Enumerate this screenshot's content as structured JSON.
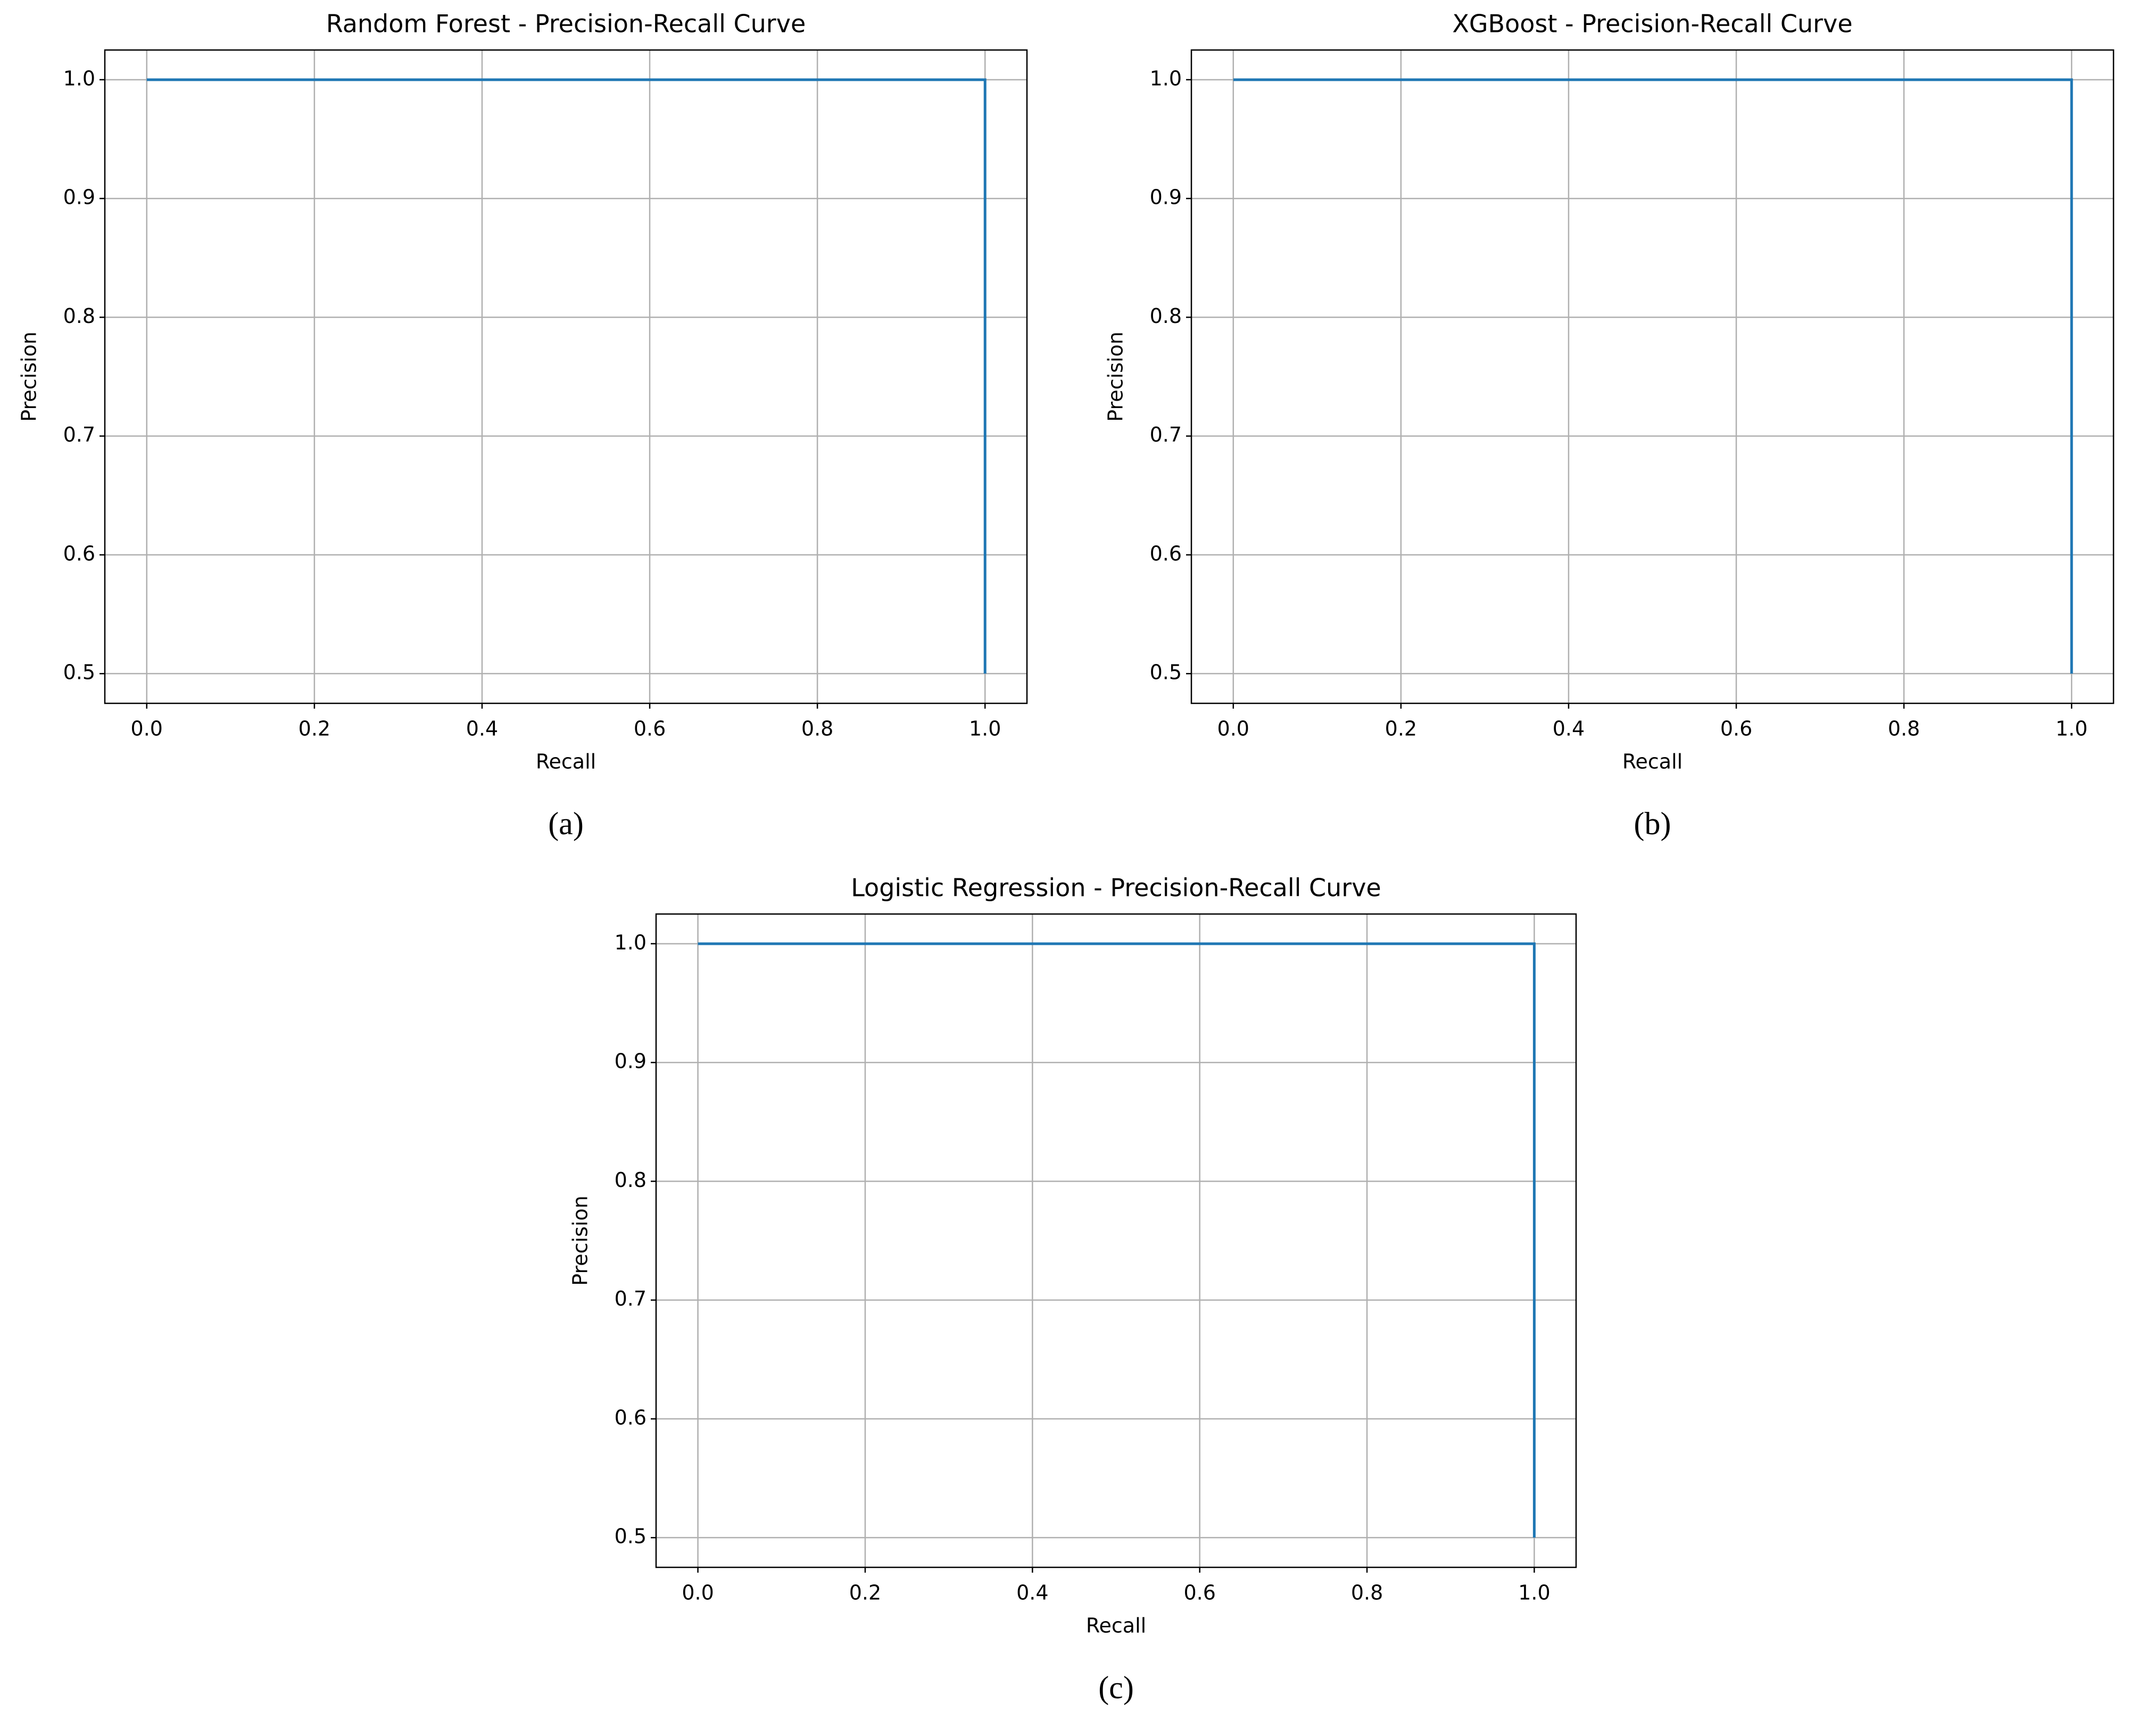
{
  "chart_data": [
    {
      "type": "line",
      "title": "Random Forest - Precision-Recall Curve",
      "xlabel": "Recall",
      "ylabel": "Precision",
      "panel_label": "(a)",
      "x": [
        0,
        1,
        1
      ],
      "series": [
        {
          "color": "#1f77b4",
          "values": [
            1,
            1,
            0.5
          ]
        }
      ],
      "xlim": [
        -0.05,
        1.05
      ],
      "ylim": [
        0.475,
        1.025
      ],
      "xticks": [
        {
          "value": 0,
          "label": "0.0"
        },
        0.2,
        0.4,
        0.6,
        0.8,
        {
          "value": 1,
          "label": "1.0"
        }
      ],
      "yticks": [
        0.5,
        0.6,
        0.7,
        0.8,
        0.9,
        {
          "value": 1,
          "label": "1.0"
        }
      ],
      "grid": true
    },
    {
      "type": "line",
      "title": "XGBoost - Precision-Recall Curve",
      "xlabel": "Recall",
      "ylabel": "Precision",
      "panel_label": "(b)",
      "x": [
        0,
        1,
        1
      ],
      "series": [
        {
          "color": "#1f77b4",
          "values": [
            1,
            1,
            0.5
          ]
        }
      ],
      "xlim": [
        -0.05,
        1.05
      ],
      "ylim": [
        0.475,
        1.025
      ],
      "xticks": [
        {
          "value": 0,
          "label": "0.0"
        },
        0.2,
        0.4,
        0.6,
        0.8,
        {
          "value": 1,
          "label": "1.0"
        }
      ],
      "yticks": [
        0.5,
        0.6,
        0.7,
        0.8,
        0.9,
        {
          "value": 1,
          "label": "1.0"
        }
      ],
      "grid": true
    },
    {
      "type": "line",
      "title": "Logistic Regression - Precision-Recall Curve",
      "xlabel": "Recall",
      "ylabel": "Precision",
      "panel_label": "(c)",
      "x": [
        0,
        1,
        1
      ],
      "series": [
        {
          "color": "#1f77b4",
          "values": [
            1,
            1,
            0.5
          ]
        }
      ],
      "xlim": [
        -0.05,
        1.05
      ],
      "ylim": [
        0.475,
        1.025
      ],
      "xticks": [
        {
          "value": 0,
          "label": "0.0"
        },
        0.2,
        0.4,
        0.6,
        0.8,
        {
          "value": 1,
          "label": "1.0"
        }
      ],
      "yticks": [
        0.5,
        0.6,
        0.7,
        0.8,
        0.9,
        {
          "value": 1,
          "label": "1.0"
        }
      ],
      "grid": true
    }
  ]
}
